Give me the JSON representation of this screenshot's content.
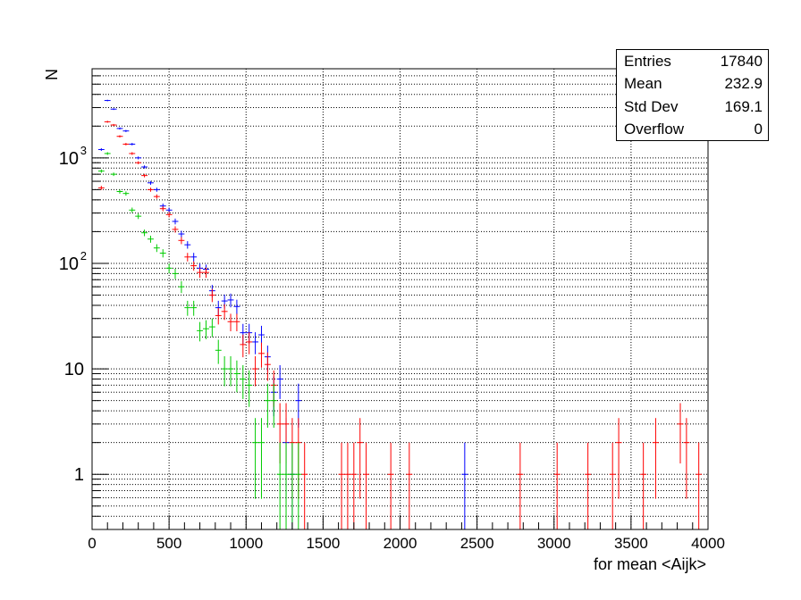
{
  "chart_data": {
    "type": "scatter",
    "xlabel": "for mean <Aijk>",
    "ylabel": "N",
    "xlim": [
      0,
      4000
    ],
    "ylim": [
      0.3,
      7000
    ],
    "yscale": "log",
    "grid": true,
    "x_ticks": [
      0,
      500,
      1000,
      1500,
      2000,
      2500,
      3000,
      3500,
      4000
    ],
    "y_ticks": [
      {
        "value": 1,
        "label": "1"
      },
      {
        "value": 10,
        "label": "10"
      },
      {
        "value": 100,
        "label": "10",
        "exp": "2"
      },
      {
        "value": 1000,
        "label": "10",
        "exp": "3"
      }
    ],
    "bin_width": 40,
    "stats": {
      "rows": [
        {
          "label": "Entries",
          "value": "17840"
        },
        {
          "label": "Mean",
          "value": "232.9"
        },
        {
          "label": "Std Dev",
          "value": "169.1"
        },
        {
          "label": "Overflow",
          "value": "0"
        }
      ]
    },
    "series": [
      {
        "color": "#0000ff",
        "points": [
          [
            60,
            1200
          ],
          [
            100,
            3500
          ],
          [
            140,
            2900
          ],
          [
            180,
            1900
          ],
          [
            220,
            1800
          ],
          [
            260,
            1350
          ],
          [
            300,
            1000
          ],
          [
            340,
            820
          ],
          [
            380,
            580
          ],
          [
            420,
            500
          ],
          [
            460,
            350
          ],
          [
            500,
            320
          ],
          [
            540,
            250
          ],
          [
            580,
            190
          ],
          [
            620,
            150
          ],
          [
            660,
            115
          ],
          [
            700,
            90
          ],
          [
            740,
            88
          ],
          [
            780,
            55
          ],
          [
            820,
            38
          ],
          [
            860,
            44
          ],
          [
            900,
            45
          ],
          [
            940,
            39
          ],
          [
            980,
            22
          ],
          [
            1020,
            22
          ],
          [
            1060,
            18
          ],
          [
            1100,
            21
          ],
          [
            1140,
            13
          ],
          [
            1180,
            6
          ],
          [
            1220,
            8
          ],
          [
            1260,
            2
          ],
          [
            1300,
            1
          ],
          [
            1340,
            5
          ],
          [
            2420,
            1
          ]
        ]
      },
      {
        "color": "#ff0000",
        "points": [
          [
            60,
            520
          ],
          [
            100,
            2200
          ],
          [
            140,
            2050
          ],
          [
            180,
            1600
          ],
          [
            220,
            1350
          ],
          [
            260,
            1100
          ],
          [
            300,
            900
          ],
          [
            340,
            680
          ],
          [
            380,
            500
          ],
          [
            420,
            430
          ],
          [
            460,
            330
          ],
          [
            500,
            290
          ],
          [
            540,
            210
          ],
          [
            580,
            165
          ],
          [
            620,
            115
          ],
          [
            660,
            95
          ],
          [
            700,
            82
          ],
          [
            740,
            82
          ],
          [
            780,
            50
          ],
          [
            820,
            32
          ],
          [
            860,
            35
          ],
          [
            900,
            28
          ],
          [
            940,
            28
          ],
          [
            980,
            17
          ],
          [
            1020,
            18
          ],
          [
            1060,
            10
          ],
          [
            1100,
            14
          ],
          [
            1140,
            11
          ],
          [
            1180,
            7
          ],
          [
            1220,
            3
          ],
          [
            1260,
            3
          ],
          [
            1300,
            2
          ],
          [
            1340,
            2
          ],
          [
            1380,
            1
          ],
          [
            1620,
            1
          ],
          [
            1660,
            1
          ],
          [
            1700,
            1
          ],
          [
            1740,
            2
          ],
          [
            1780,
            1
          ],
          [
            1940,
            1
          ],
          [
            2060,
            1
          ],
          [
            2780,
            1
          ],
          [
            3020,
            1
          ],
          [
            3220,
            1
          ],
          [
            3380,
            1
          ],
          [
            3420,
            2
          ],
          [
            3580,
            1
          ],
          [
            3660,
            2
          ],
          [
            3820,
            3
          ],
          [
            3860,
            2
          ],
          [
            3940,
            1
          ]
        ]
      },
      {
        "color": "#00cc00",
        "points": [
          [
            60,
            750
          ],
          [
            100,
            1100
          ],
          [
            140,
            700
          ],
          [
            180,
            480
          ],
          [
            220,
            460
          ],
          [
            260,
            320
          ],
          [
            300,
            280
          ],
          [
            340,
            195
          ],
          [
            380,
            170
          ],
          [
            420,
            140
          ],
          [
            460,
            125
          ],
          [
            500,
            90
          ],
          [
            540,
            80
          ],
          [
            580,
            60
          ],
          [
            620,
            38
          ],
          [
            660,
            38
          ],
          [
            700,
            23
          ],
          [
            740,
            24
          ],
          [
            780,
            25
          ],
          [
            820,
            15
          ],
          [
            860,
            10
          ],
          [
            900,
            10
          ],
          [
            940,
            9
          ],
          [
            980,
            8
          ],
          [
            1020,
            7
          ],
          [
            1060,
            2
          ],
          [
            1100,
            2
          ],
          [
            1140,
            5
          ],
          [
            1180,
            5
          ],
          [
            1220,
            1
          ],
          [
            1260,
            1
          ],
          [
            1300,
            1
          ],
          [
            1340,
            1
          ]
        ]
      }
    ]
  }
}
